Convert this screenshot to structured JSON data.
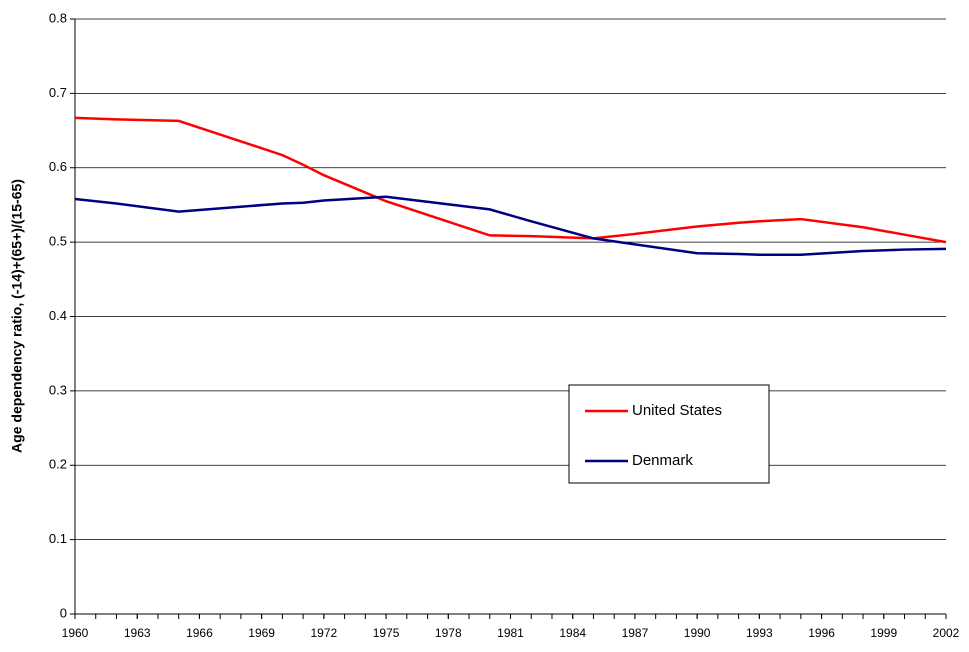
{
  "chart_data": {
    "type": "line",
    "y_label": "Age dependency ratio, (-14)+(65+)/(15-65)",
    "x": [
      1960,
      1962,
      1965,
      1970,
      1971,
      1972,
      1975,
      1980,
      1982,
      1985,
      1987,
      1990,
      1992,
      1993,
      1995,
      1998,
      2000,
      2002
    ],
    "series": [
      {
        "name": "United States",
        "color": "#ff0000",
        "values": [
          0.667,
          0.665,
          0.663,
          0.617,
          0.604,
          0.59,
          0.555,
          0.509,
          0.508,
          0.505,
          0.511,
          0.521,
          0.526,
          0.528,
          0.531,
          0.52,
          0.51,
          0.5
        ]
      },
      {
        "name": "Denmark",
        "color": "#000080",
        "values": [
          0.558,
          0.552,
          0.541,
          0.552,
          0.553,
          0.556,
          0.561,
          0.544,
          0.528,
          0.505,
          0.497,
          0.485,
          0.484,
          0.483,
          0.483,
          0.488,
          0.49,
          0.491
        ]
      }
    ],
    "xlim": [
      1960,
      2002
    ],
    "xticks": [
      1960,
      1963,
      1966,
      1969,
      1972,
      1975,
      1978,
      1981,
      1984,
      1987,
      1990,
      1993,
      1996,
      1999,
      2002
    ],
    "ylim": [
      0,
      0.8
    ],
    "yticks": [
      0,
      0.1,
      0.2,
      0.3,
      0.4,
      0.5,
      0.6,
      0.7,
      0.8
    ],
    "grid": true
  }
}
